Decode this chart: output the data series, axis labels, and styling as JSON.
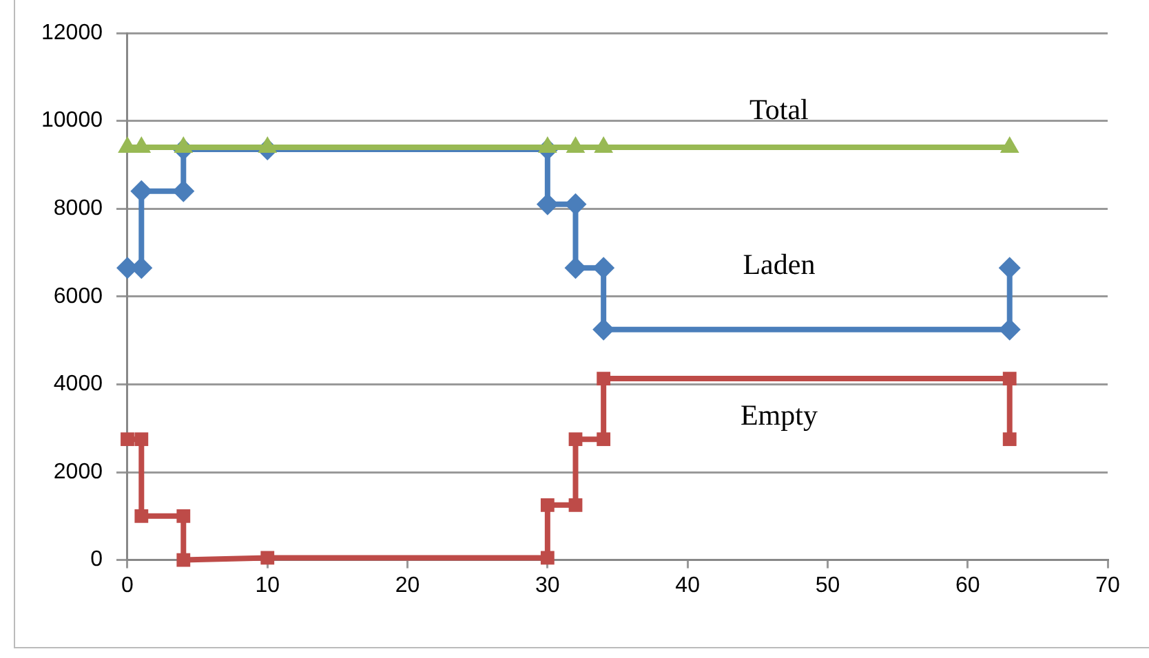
{
  "chart_data": {
    "type": "line",
    "xlim": [
      0,
      70
    ],
    "xticks": [
      0,
      10,
      20,
      30,
      40,
      50,
      60,
      70
    ],
    "ylim": [
      0,
      12000
    ],
    "yticks": [
      0,
      2000,
      4000,
      6000,
      8000,
      10000,
      12000
    ],
    "grid": "y",
    "legend": false,
    "line_style": "solid",
    "series": [
      {
        "name": "Total",
        "color": "#98b954",
        "marker": "triangle",
        "x": [
          0,
          1,
          4,
          10,
          30,
          32,
          34,
          63
        ],
        "values": [
          9400,
          9400,
          9400,
          9400,
          9400,
          9400,
          9400,
          9400
        ]
      },
      {
        "name": "Laden",
        "color": "#4a7ebb",
        "marker": "diamond",
        "x": [
          0,
          1,
          1,
          4,
          4,
          10,
          30,
          30,
          32,
          32,
          34,
          34,
          63,
          63
        ],
        "values": [
          6650,
          6650,
          8400,
          8400,
          9350,
          9350,
          9350,
          8100,
          8100,
          6650,
          6650,
          5250,
          5250,
          6650
        ]
      },
      {
        "name": "Empty",
        "color": "#be4b48",
        "marker": "square",
        "x": [
          0,
          1,
          1,
          4,
          4,
          10,
          30,
          30,
          32,
          32,
          34,
          34,
          63,
          63
        ],
        "values": [
          2750,
          2750,
          1000,
          1000,
          0,
          50,
          50,
          1250,
          1250,
          2750,
          2750,
          4130,
          4130,
          2750
        ]
      }
    ]
  }
}
